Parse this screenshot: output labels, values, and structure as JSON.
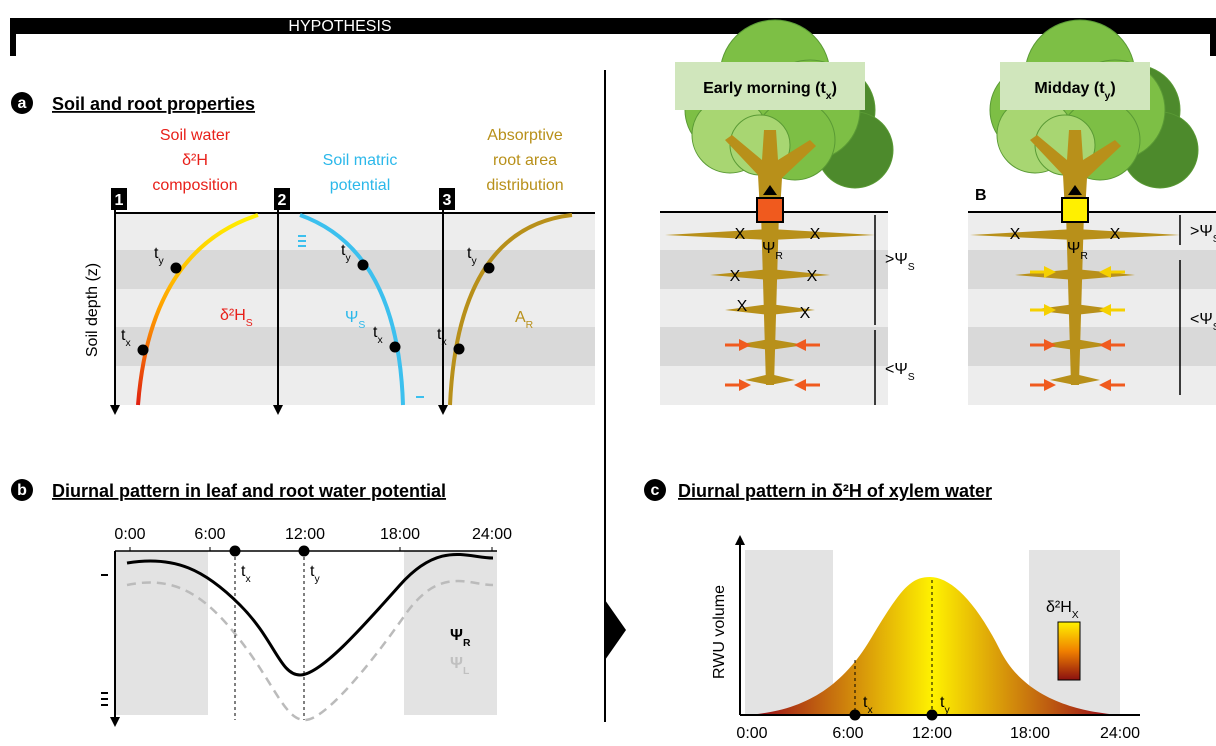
{
  "banner": "HYPOTHESIS",
  "panel_a": {
    "letter": "a",
    "title": "Soil and root properties",
    "y_axis_label": "Soil depth (z)",
    "columns": [
      {
        "number": "1",
        "title": [
          "Soil water",
          "δ²H",
          "composition"
        ],
        "curve_label": [
          {
            "t": "δ²H"
          },
          {
            "sub": "S"
          }
        ],
        "point_labels": [
          [
            {
              "t": "t"
            },
            {
              "sub": "y"
            }
          ],
          [
            {
              "t": "t"
            },
            {
              "sub": "x"
            }
          ]
        ]
      },
      {
        "number": "2",
        "title": [
          "Soil matric",
          "potential"
        ],
        "curve_label": [
          {
            "t": "Ψ"
          },
          {
            "sub": "S"
          }
        ],
        "point_labels": [
          [
            {
              "t": "t"
            },
            {
              "sub": "y"
            }
          ],
          [
            {
              "t": "t"
            },
            {
              "sub": "x"
            }
          ]
        ]
      },
      {
        "number": "3",
        "title": [
          "Absorptive",
          "root area",
          "distribution"
        ],
        "curve_label": [
          {
            "t": "A"
          },
          {
            "sub": "R"
          }
        ],
        "point_labels": [
          [
            {
              "t": "t"
            },
            {
              "sub": "y"
            }
          ],
          [
            {
              "t": "t"
            },
            {
              "sub": "x"
            }
          ]
        ]
      }
    ]
  },
  "trees": [
    {
      "title": [
        {
          "t": "Early morning (t"
        },
        {
          "sub": "x"
        },
        {
          "t": ")"
        }
      ],
      "root_label": [
        {
          "t": "Ψ"
        },
        {
          "sub": "R"
        }
      ],
      "upper_zone": [
        {
          "t": ">Ψ"
        },
        {
          "sub": "S"
        }
      ],
      "lower_zone": [
        {
          "t": "<Ψ"
        },
        {
          "sub": "S"
        }
      ],
      "cross": "X"
    },
    {
      "title": [
        {
          "t": "Midday (t"
        },
        {
          "sub": "y"
        },
        {
          "t": ")"
        }
      ],
      "tag": "B",
      "root_label": [
        {
          "t": "Ψ"
        },
        {
          "sub": "R"
        }
      ],
      "upper_zone": [
        {
          "t": ">Ψ"
        },
        {
          "sub": "S"
        }
      ],
      "lower_zone": [
        {
          "t": "<Ψ"
        },
        {
          "sub": "S"
        }
      ],
      "cross": "X"
    }
  ],
  "panel_b": {
    "letter": "b",
    "title": "Diurnal pattern in leaf and root water potential",
    "time_ticks": [
      "0:00",
      "6:00",
      "12:00",
      "18:00",
      "24:00"
    ],
    "point_labels": [
      [
        {
          "t": "t"
        },
        {
          "sub": "x"
        }
      ],
      [
        {
          "t": "t"
        },
        {
          "sub": "y"
        }
      ]
    ],
    "legend": [
      [
        {
          "t": "Ψ"
        },
        {
          "sub": "R"
        }
      ],
      [
        {
          "t": "Ψ"
        },
        {
          "sub": "L"
        }
      ]
    ]
  },
  "panel_c": {
    "letter": "c",
    "title": "Diurnal pattern in δ²H of xylem water",
    "y_axis_label": "RWU volume",
    "colorbar_label": [
      {
        "t": "δ²H"
      },
      {
        "sub": "X"
      }
    ],
    "time_ticks": [
      "0:00",
      "6:00",
      "12:00",
      "18:00",
      "24:00"
    ],
    "point_labels": [
      [
        {
          "t": "t"
        },
        {
          "sub": "x"
        }
      ],
      [
        {
          "t": "t"
        },
        {
          "sub": "y"
        }
      ]
    ]
  }
}
